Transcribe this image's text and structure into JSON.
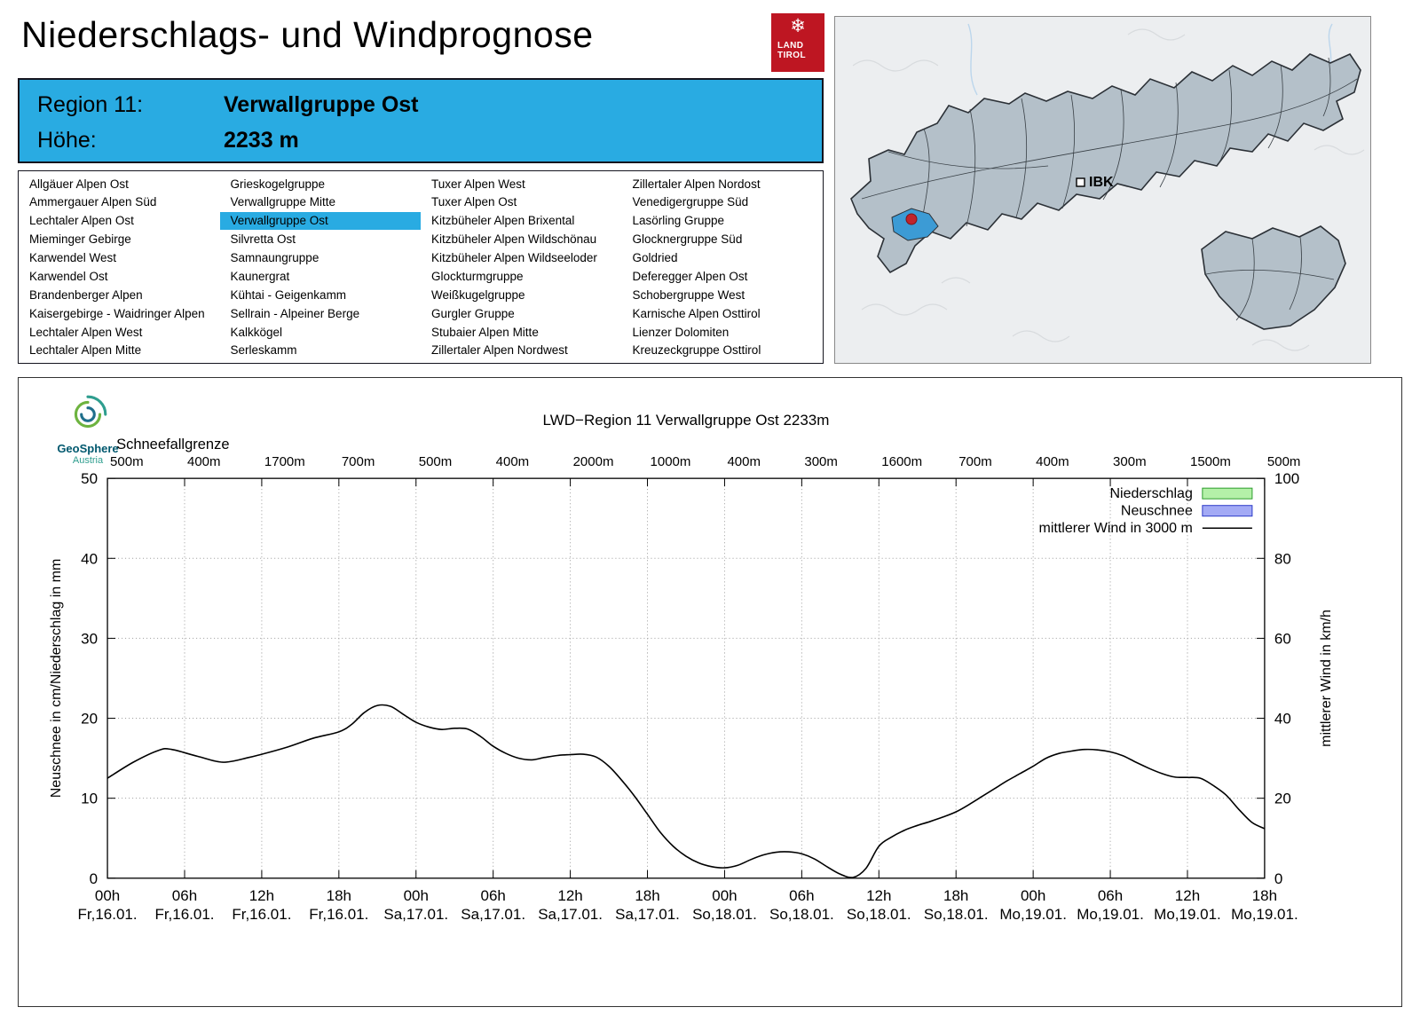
{
  "page": {
    "title": "Niederschlags- und Windprognose"
  },
  "logo": {
    "line1": "LAND",
    "line2": "TIROL",
    "color": "#be1622"
  },
  "region_header": {
    "region_label": "Region 11:",
    "region_name": "Verwallgruppe Ost",
    "hoehe_label": "Höhe:",
    "hoehe_value": "2233 m",
    "bg_color": "#29abe2"
  },
  "region_list": {
    "selected": "Verwallgruppe Ost",
    "columns": [
      [
        "Allgäuer Alpen Ost",
        "Ammergauer Alpen Süd",
        "Lechtaler Alpen Ost",
        "Mieminger Gebirge",
        "Karwendel West",
        "Karwendel Ost",
        "Brandenberger Alpen",
        "Kaisergebirge - Waidringer Alpen",
        "Lechtaler Alpen West",
        "Lechtaler Alpen Mitte"
      ],
      [
        "Grieskogelgruppe",
        "Verwallgruppe Mitte",
        "Verwallgruppe Ost",
        "Silvretta Ost",
        "Samnaungruppe",
        "Kaunergrat",
        "Kühtai - Geigenkamm",
        "Sellrain - Alpeiner Berge",
        "Kalkkögel",
        "Serleskamm"
      ],
      [
        "Tuxer Alpen West",
        "Tuxer Alpen Ost",
        "Kitzbüheler Alpen Brixental",
        "Kitzbüheler Alpen Wildschönau",
        "Kitzbüheler Alpen Wildseeloder",
        "Glockturmgruppe",
        "Weißkugelgruppe",
        "Gurgler Gruppe",
        "Stubaier Alpen Mitte",
        "Zillertaler Alpen Nordwest"
      ],
      [
        "Zillertaler Alpen Nordost",
        "Venedigergruppe Süd",
        "Lasörling Gruppe",
        "Glocknergruppe Süd",
        "Goldried",
        "Deferegger Alpen Ost",
        "Schobergruppe West",
        "Karnische Alpen Osttirol",
        "Lienzer Dolomiten",
        "Kreuzeckgruppe Osttirol"
      ]
    ]
  },
  "map": {
    "label_ibk": "IBK",
    "highlight_color": "#3c9bd5",
    "marker_color": "#c0242c"
  },
  "geosphere": {
    "name": "GeoSphere",
    "country": "Austria"
  },
  "chart_data": {
    "type": "line",
    "title": "LWD−Region 11 Verwallgruppe Ost 2233m",
    "snowline_label": "Schneefallgrenze",
    "snowline_values": [
      "500m",
      "400m",
      "1700m",
      "700m",
      "500m",
      "400m",
      "2000m",
      "1000m",
      "400m",
      "300m",
      "1600m",
      "700m",
      "400m",
      "300m",
      "1500m",
      "500m"
    ],
    "x_ticks": [
      {
        "hour": "00h",
        "date": "Fr,16.01."
      },
      {
        "hour": "06h",
        "date": "Fr,16.01."
      },
      {
        "hour": "12h",
        "date": "Fr,16.01."
      },
      {
        "hour": "18h",
        "date": "Fr,16.01."
      },
      {
        "hour": "00h",
        "date": "Sa,17.01."
      },
      {
        "hour": "06h",
        "date": "Sa,17.01."
      },
      {
        "hour": "12h",
        "date": "Sa,17.01."
      },
      {
        "hour": "18h",
        "date": "Sa,17.01."
      },
      {
        "hour": "00h",
        "date": "So,18.01."
      },
      {
        "hour": "06h",
        "date": "So,18.01."
      },
      {
        "hour": "12h",
        "date": "So,18.01."
      },
      {
        "hour": "18h",
        "date": "So,18.01."
      },
      {
        "hour": "00h",
        "date": "Mo,19.01."
      },
      {
        "hour": "06h",
        "date": "Mo,19.01."
      },
      {
        "hour": "12h",
        "date": "Mo,19.01."
      },
      {
        "hour": "18h",
        "date": "Mo,19.01."
      }
    ],
    "x_hours_total": 90,
    "ylabel_left": "Neuschnee in cm/Niederschlag in mm",
    "ylabel_right": "mittlerer Wind in km/h",
    "ylim_left": [
      0,
      50
    ],
    "ylim_right": [
      0,
      100
    ],
    "yticks_left": [
      0,
      10,
      20,
      30,
      40,
      50
    ],
    "yticks_right": [
      0,
      20,
      40,
      60,
      80,
      100
    ],
    "grid": "dotted",
    "legend_position": "top-right",
    "legend": [
      {
        "label": "Niederschlag",
        "type": "box",
        "fill": "#b4f0a8",
        "stroke": "#2e9e2e"
      },
      {
        "label": "Neuschnee",
        "type": "box",
        "fill": "#a3aaf5",
        "stroke": "#2d3bc8"
      },
      {
        "label": "mittlerer Wind in 3000 m",
        "type": "line",
        "fill": "#000000",
        "stroke": "#000000"
      }
    ],
    "niederschlag_mm": [],
    "neuschnee_cm": [],
    "series": [
      {
        "name": "mittlerer Wind in 3000 m",
        "unit": "km/h",
        "axis": "right",
        "points": [
          [
            0,
            25
          ],
          [
            2,
            29
          ],
          [
            4,
            32
          ],
          [
            5,
            32.2
          ],
          [
            7,
            30.5
          ],
          [
            9,
            29
          ],
          [
            11,
            30.2
          ],
          [
            12,
            31
          ],
          [
            14,
            32.8
          ],
          [
            16,
            35
          ],
          [
            18,
            36.6
          ],
          [
            19,
            38.5
          ],
          [
            20,
            41.5
          ],
          [
            21,
            43.2
          ],
          [
            22,
            43
          ],
          [
            23,
            41
          ],
          [
            24,
            39
          ],
          [
            25,
            37.8
          ],
          [
            26,
            37.2
          ],
          [
            27,
            37.5
          ],
          [
            28,
            37.3
          ],
          [
            29,
            35.5
          ],
          [
            30,
            33
          ],
          [
            31,
            31.2
          ],
          [
            32,
            30
          ],
          [
            33,
            29.6
          ],
          [
            34,
            30.2
          ],
          [
            35,
            30.7
          ],
          [
            36,
            30.9
          ],
          [
            37,
            31
          ],
          [
            38,
            30.3
          ],
          [
            39,
            28
          ],
          [
            40,
            24.5
          ],
          [
            41,
            20.5
          ],
          [
            42,
            16
          ],
          [
            43,
            11.5
          ],
          [
            44,
            8
          ],
          [
            45,
            5.5
          ],
          [
            46,
            3.8
          ],
          [
            47,
            2.9
          ],
          [
            48,
            2.6
          ],
          [
            49,
            3.2
          ],
          [
            50,
            4.6
          ],
          [
            51,
            5.8
          ],
          [
            52,
            6.5
          ],
          [
            53,
            6.6
          ],
          [
            54,
            6.1
          ],
          [
            55,
            4.8
          ],
          [
            56,
            2.8
          ],
          [
            57,
            1
          ],
          [
            58,
            0.2
          ],
          [
            59,
            2.5
          ],
          [
            60,
            8
          ],
          [
            61,
            10.3
          ],
          [
            62,
            12
          ],
          [
            63,
            13.2
          ],
          [
            64,
            14.2
          ],
          [
            65,
            15.3
          ],
          [
            66,
            16.6
          ],
          [
            67,
            18.4
          ],
          [
            68,
            20.4
          ],
          [
            69,
            22.4
          ],
          [
            70,
            24.4
          ],
          [
            71,
            26.2
          ],
          [
            72,
            28
          ],
          [
            73,
            30
          ],
          [
            74,
            31.2
          ],
          [
            75,
            31.8
          ],
          [
            76,
            32.2
          ],
          [
            77,
            32.1
          ],
          [
            78,
            31.6
          ],
          [
            79,
            30.6
          ],
          [
            80,
            29
          ],
          [
            81,
            27.5
          ],
          [
            82,
            26.2
          ],
          [
            83,
            25.3
          ],
          [
            84,
            25.2
          ],
          [
            85,
            25
          ],
          [
            86,
            23.2
          ],
          [
            87,
            20.8
          ],
          [
            88,
            17.2
          ],
          [
            89,
            14
          ],
          [
            90,
            12.4
          ]
        ]
      }
    ]
  }
}
